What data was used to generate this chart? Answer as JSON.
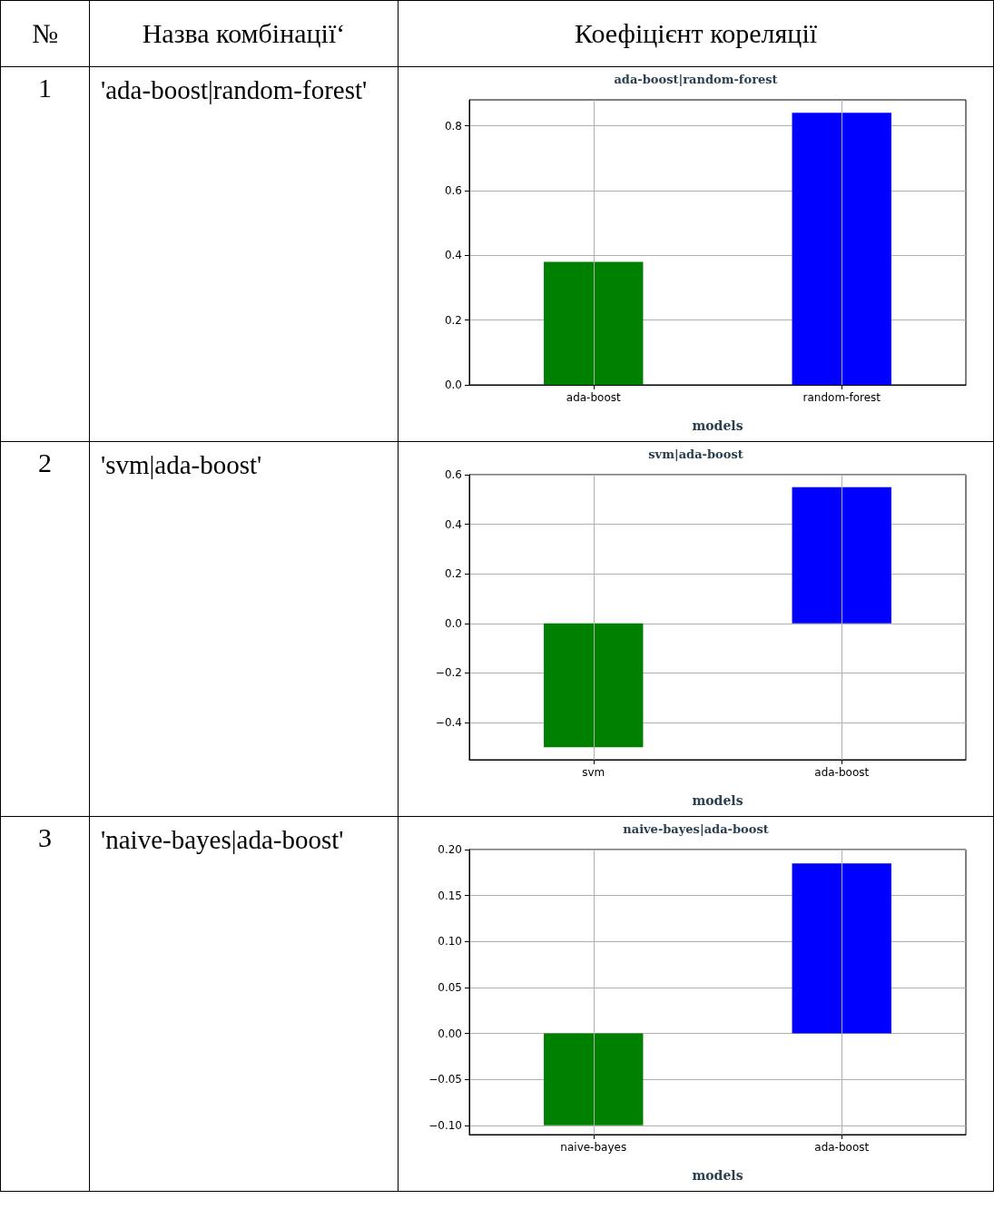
{
  "chart_data": [
    {
      "type": "other",
      "annotations": [
        "№",
        "Назва комбінації‘",
        "Коефіцієнт кореляції"
      ]
    },
    {
      "type": "other",
      "annotations": [
        "1",
        "'ada-boost|random-forest'"
      ]
    },
    {
      "type": "bar",
      "title": "ada-boost|random-forest",
      "xlabel": "models",
      "categories": [
        "ada-boost",
        "random-forest"
      ],
      "values": [
        0.38,
        0.84
      ],
      "colors": [
        "#008000",
        "#0000ff"
      ],
      "ylim": [
        0,
        0.88
      ],
      "yticks": [
        {
          "value": 0,
          "label": "0.0"
        },
        {
          "value": 0.2,
          "label": "0.2"
        },
        {
          "value": 0.4,
          "label": "0.4"
        },
        {
          "value": 0.6,
          "label": "0.6"
        },
        {
          "value": 0.8,
          "label": "0.8"
        }
      ],
      "grid": true
    },
    {
      "type": "other",
      "annotations": [
        "2",
        "'svm|ada-boost'"
      ]
    },
    {
      "type": "bar",
      "title": "svm|ada-boost",
      "xlabel": "models",
      "categories": [
        "svm",
        "ada-boost"
      ],
      "values": [
        -0.5,
        0.55
      ],
      "colors": [
        "#008000",
        "#0000ff"
      ],
      "ylim": [
        -0.55,
        0.6
      ],
      "yticks": [
        {
          "value": -0.4,
          "label": "−0.4"
        },
        {
          "value": -0.2,
          "label": "−0.2"
        },
        {
          "value": 0,
          "label": "0.0"
        },
        {
          "value": 0.2,
          "label": "0.2"
        },
        {
          "value": 0.4,
          "label": "0.4"
        },
        {
          "value": 0.6,
          "label": "0.6"
        }
      ],
      "grid": true
    },
    {
      "type": "other",
      "annotations": [
        "3",
        "'naive-bayes|ada-boost'"
      ]
    },
    {
      "type": "bar",
      "title": "naive-bayes|ada-boost",
      "xlabel": "models",
      "categories": [
        "naive-bayes",
        "ada-boost"
      ],
      "values": [
        -0.1,
        0.185
      ],
      "colors": [
        "#008000",
        "#0000ff"
      ],
      "ylim": [
        -0.11,
        0.2
      ],
      "yticks": [
        {
          "value": -0.1,
          "label": "−0.10"
        },
        {
          "value": -0.05,
          "label": "−0.05"
        },
        {
          "value": 0,
          "label": "0.00"
        },
        {
          "value": 0.05,
          "label": "0.05"
        },
        {
          "value": 0.1,
          "label": "0.10"
        },
        {
          "value": 0.15,
          "label": "0.15"
        },
        {
          "value": 0.2,
          "label": "0.20"
        }
      ],
      "grid": true
    }
  ]
}
